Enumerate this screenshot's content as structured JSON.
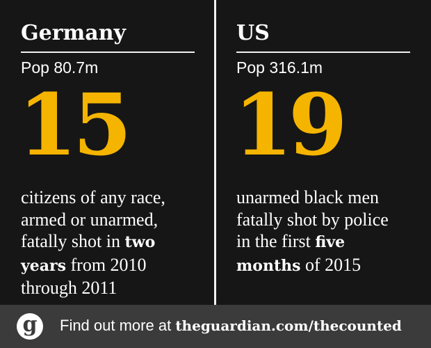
{
  "panels": [
    {
      "title": "Germany",
      "population": "Pop 80.7m",
      "number": "15",
      "description": [
        [
          {
            "text": "citizens of any race,"
          }
        ],
        [
          {
            "text": "armed or unarmed,"
          }
        ],
        [
          {
            "text": "fatally shot in "
          },
          {
            "text": "two",
            "bold": true
          }
        ],
        [
          {
            "text": "years",
            "bold": true
          },
          {
            "text": " from 2010"
          }
        ],
        [
          {
            "text": "through 2011"
          }
        ]
      ]
    },
    {
      "title": "US",
      "population": "Pop 316.1m",
      "number": "19",
      "description": [
        [
          {
            "text": "unarmed black men"
          }
        ],
        [
          {
            "text": "fatally shot by police"
          }
        ],
        [
          {
            "text": "in the first "
          },
          {
            "text": "five",
            "bold": true
          }
        ],
        [
          {
            "text": "months",
            "bold": true
          },
          {
            "text": " of 2015"
          }
        ]
      ]
    }
  ],
  "footer": {
    "logo": "g",
    "text": "Find out more at ",
    "link": "theguardian.com/thecounted"
  }
}
